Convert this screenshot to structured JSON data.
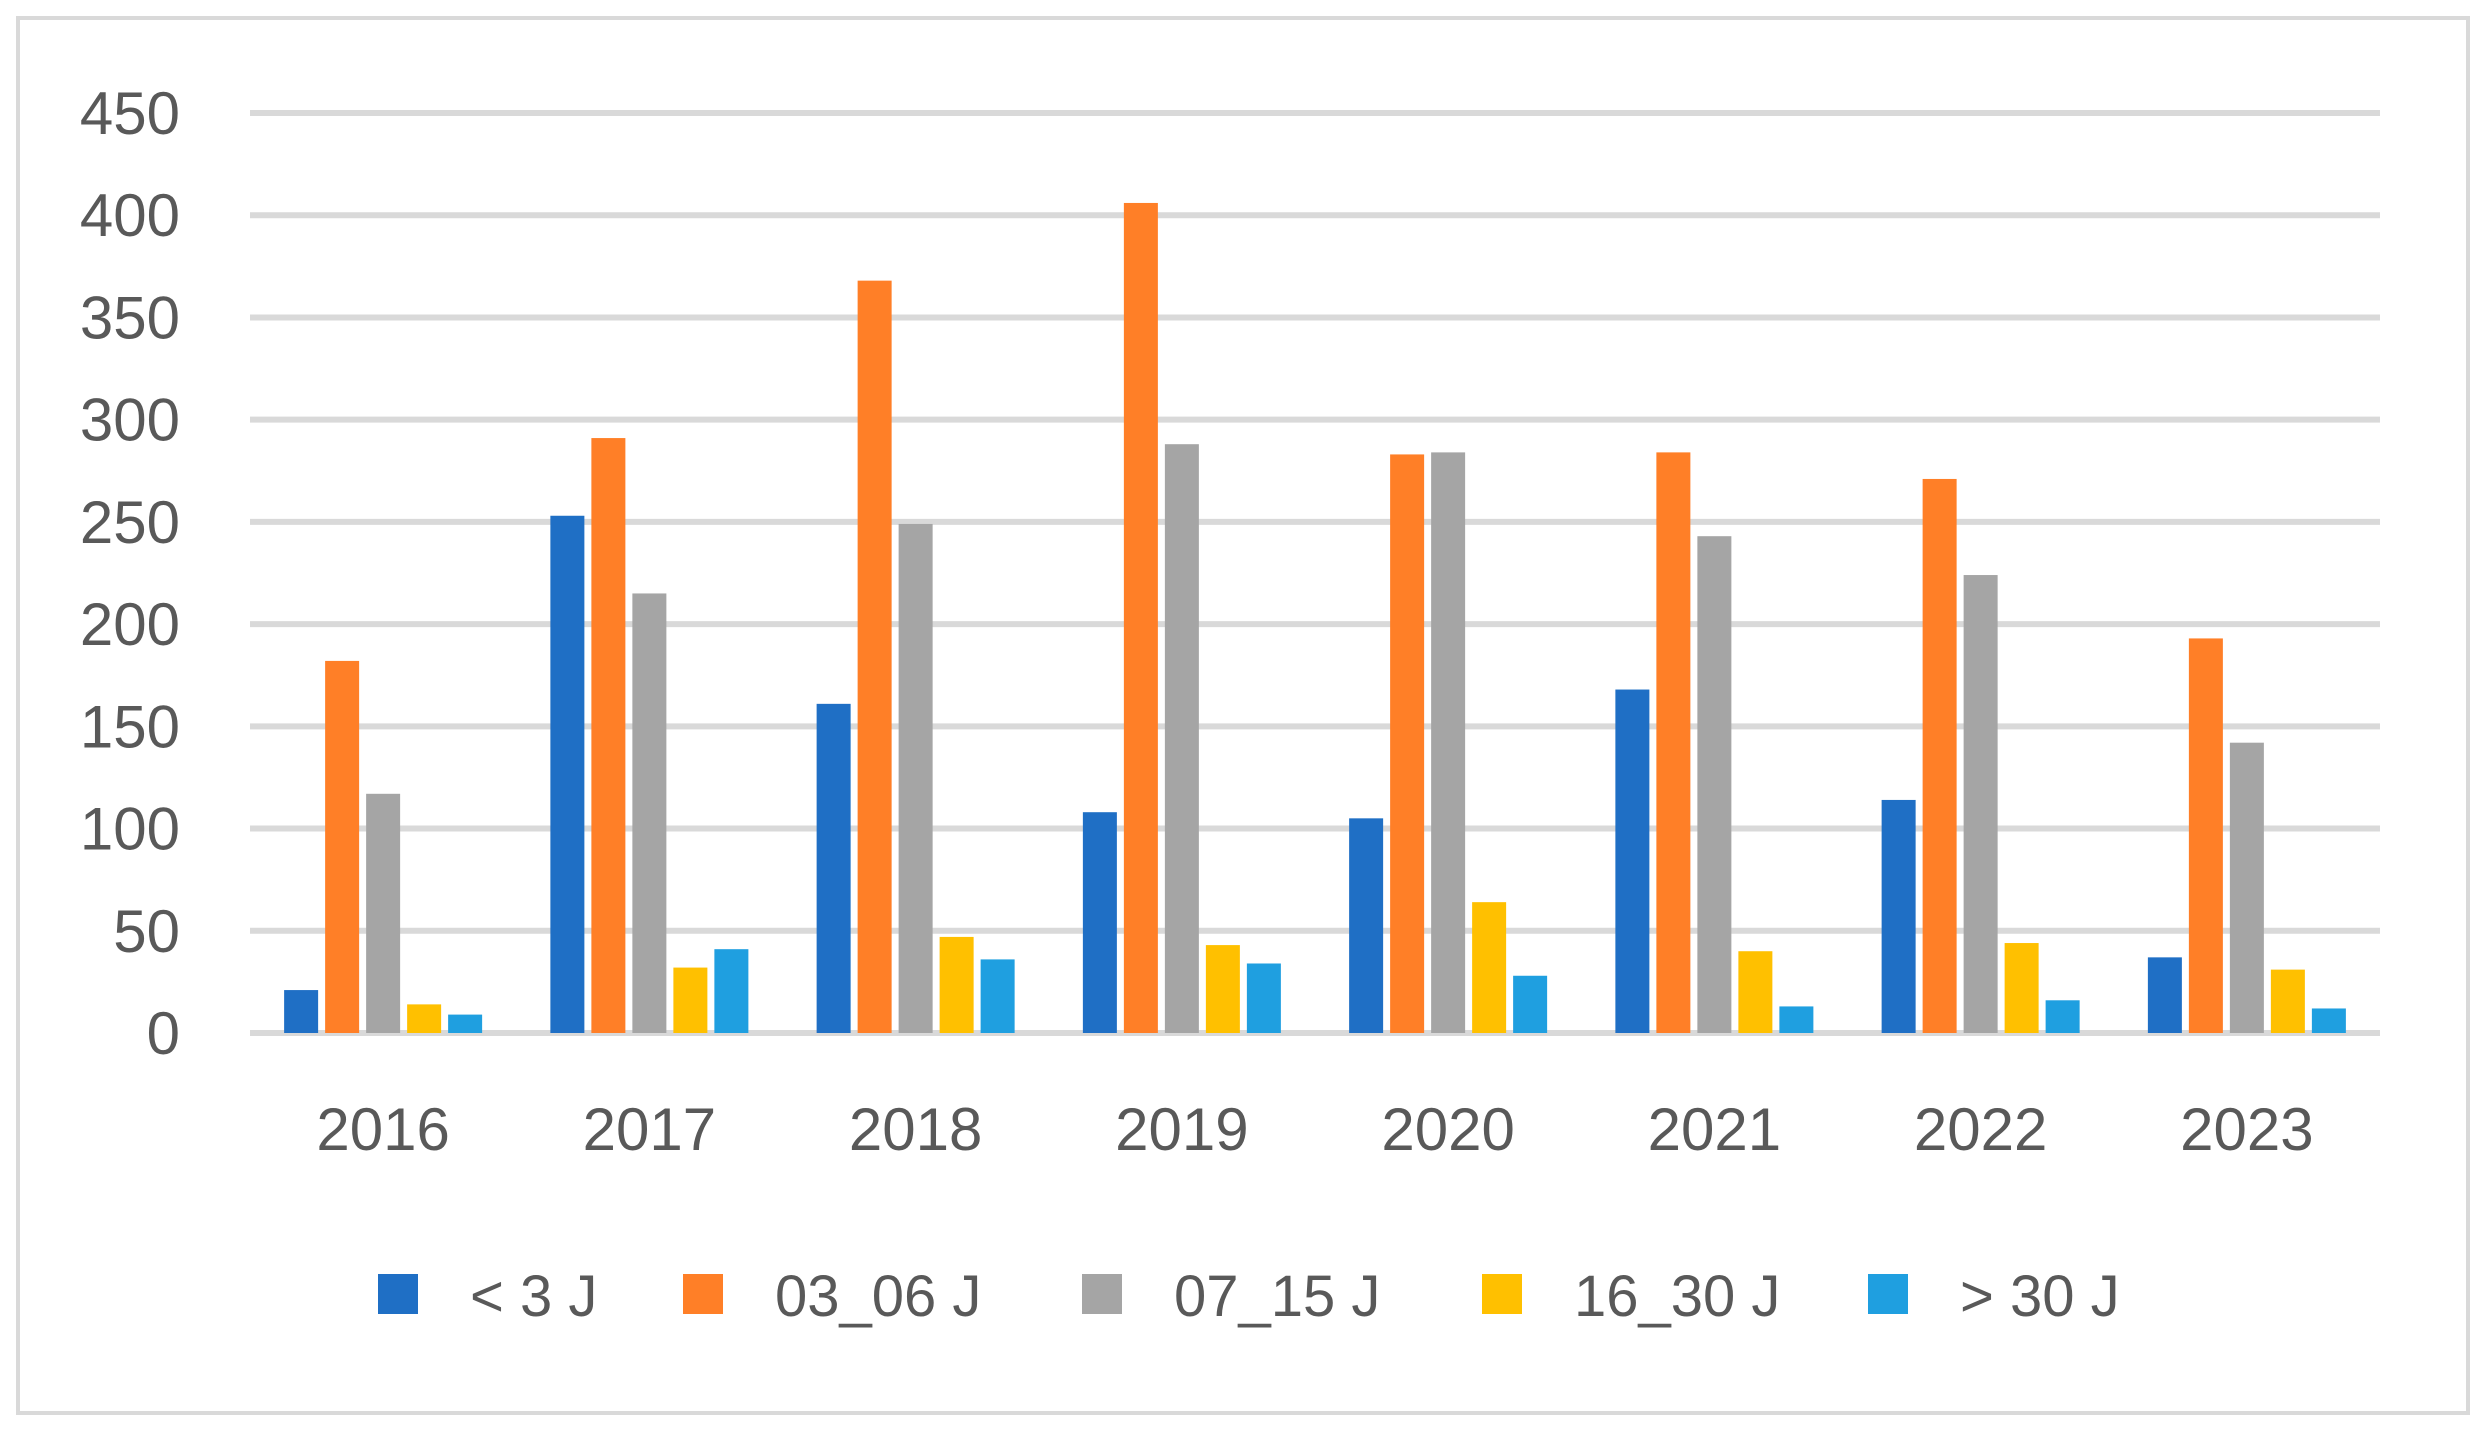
{
  "chart_data": {
    "type": "bar",
    "title": "",
    "xlabel": "",
    "ylabel": "",
    "ylim": [
      0,
      450
    ],
    "yticks": [
      0,
      50,
      100,
      150,
      200,
      250,
      300,
      350,
      400,
      450
    ],
    "grid": true,
    "legend_position": "bottom",
    "categories": [
      "2016",
      "2017",
      "2018",
      "2019",
      "2020",
      "2021",
      "2022",
      "2023"
    ],
    "series": [
      {
        "name": "< 3 J",
        "color": "#1f6fc5",
        "values": [
          21,
          253,
          161,
          108,
          105,
          168,
          114,
          37
        ]
      },
      {
        "name": "03_06 J",
        "color": "#ff7f27",
        "values": [
          182,
          291,
          368,
          406,
          283,
          284,
          271,
          193
        ]
      },
      {
        "name": "07_15 J",
        "color": "#a5a5a5",
        "values": [
          117,
          215,
          249,
          288,
          284,
          243,
          224,
          142
        ]
      },
      {
        "name": "16_30 J",
        "color": "#ffc000",
        "values": [
          14,
          32,
          47,
          43,
          64,
          40,
          44,
          31
        ]
      },
      {
        "name": "> 30 J",
        "color": "#1f9fe0",
        "values": [
          9,
          41,
          36,
          34,
          28,
          13,
          16,
          12
        ]
      }
    ]
  }
}
